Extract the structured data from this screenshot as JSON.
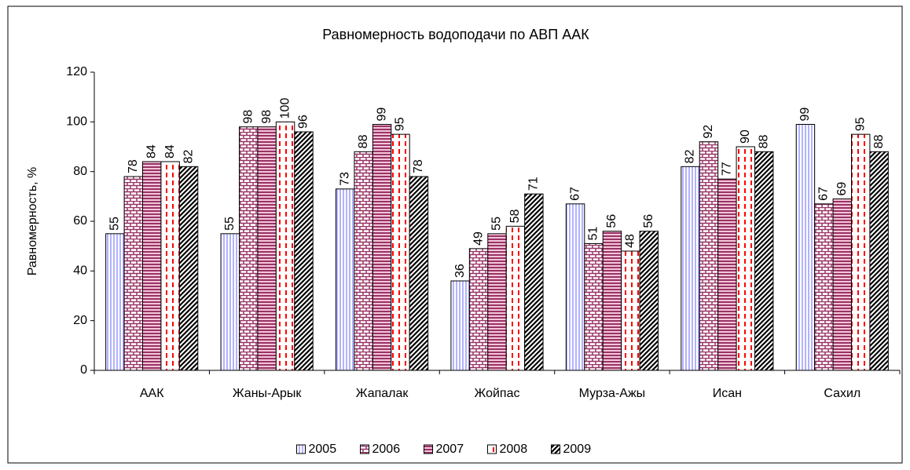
{
  "chart_data": {
    "type": "bar",
    "title": "Равномерность водоподачи по АВП ААК",
    "y_label": "Равномерность, %",
    "categories": [
      "ААК",
      "Жаны-Арык",
      "Жапалак",
      "Жойпас",
      "Мурза-Ажы",
      "Исан",
      "Сахил"
    ],
    "series": [
      {
        "name": "2005",
        "color": "#9999ff",
        "values": [
          55,
          55,
          73,
          36,
          67,
          82,
          99
        ]
      },
      {
        "name": "2006",
        "color": "#993366",
        "values": [
          78,
          98,
          88,
          49,
          51,
          92,
          67
        ]
      },
      {
        "name": "2007",
        "color": "#993366",
        "values": [
          84,
          98,
          99,
          55,
          56,
          77,
          69
        ]
      },
      {
        "name": "2008",
        "color": "#ff0000",
        "values": [
          84,
          100,
          95,
          58,
          48,
          90,
          95
        ]
      },
      {
        "name": "2009",
        "color": "#000000",
        "values": [
          82,
          96,
          78,
          71,
          56,
          88,
          88
        ]
      }
    ],
    "ylim": [
      0,
      120
    ],
    "yticks": [
      0,
      20,
      40,
      60,
      80,
      100,
      120
    ],
    "grid": false,
    "legend": "bottom"
  }
}
